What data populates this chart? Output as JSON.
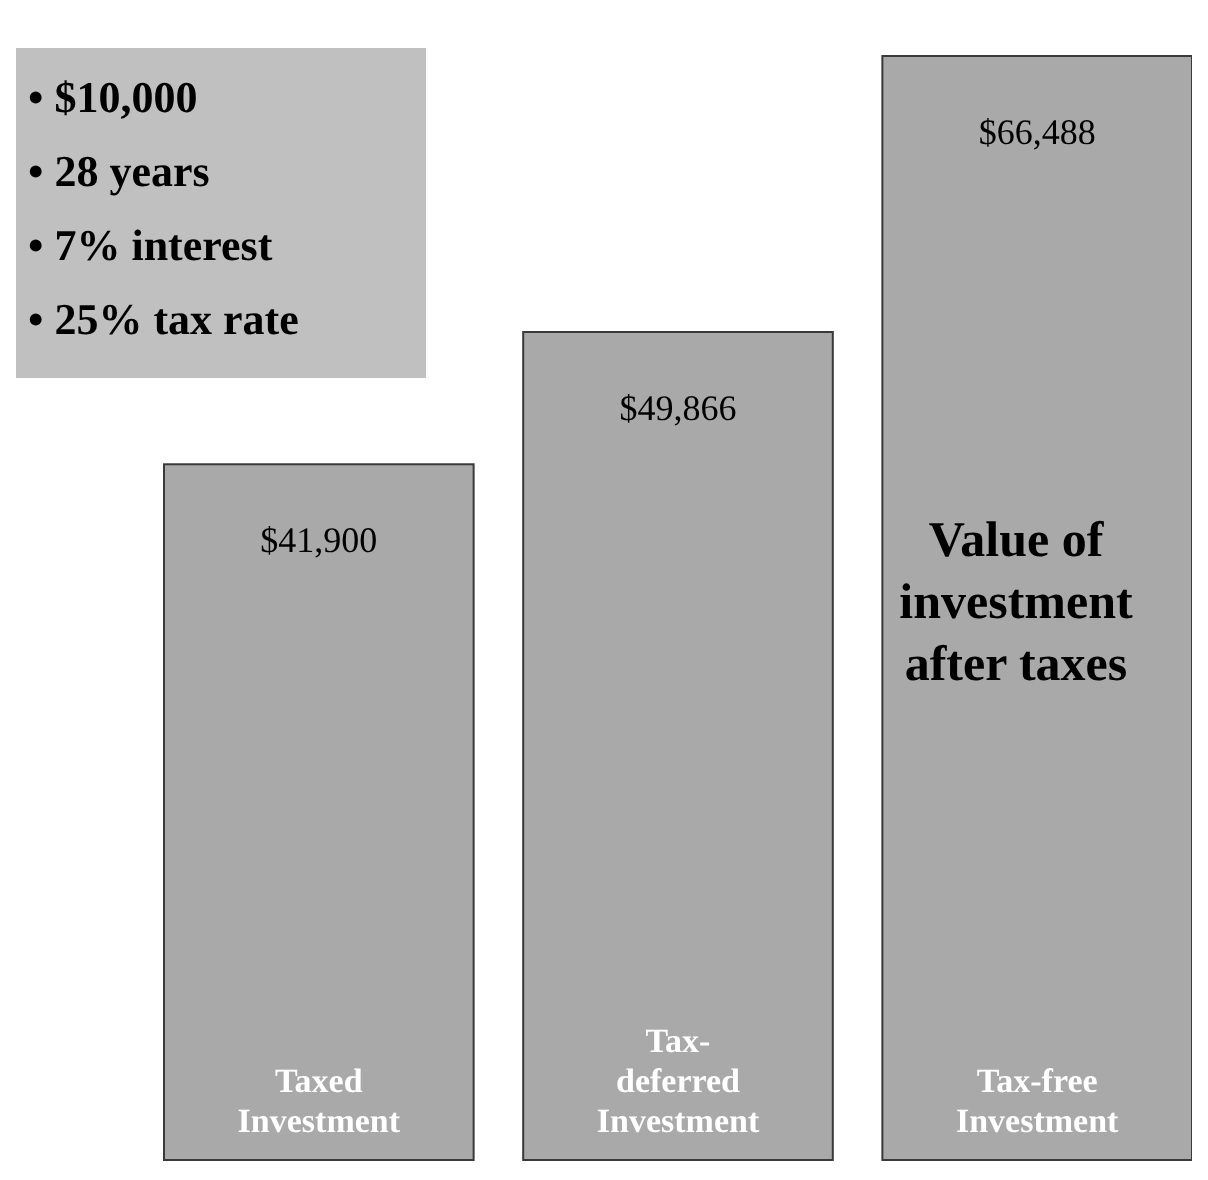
{
  "chart_data": {
    "type": "bar",
    "title": "Value of\ninvestment\nafter taxes",
    "categories": [
      "Taxed\nInvestment",
      "Tax-\ndeferred\nInvestment",
      "Tax-free\nInvestment"
    ],
    "values": [
      41900,
      49866,
      66488
    ],
    "value_labels": [
      "$41,900",
      "$49,866",
      "$66,488"
    ],
    "color": "#a9a9a9",
    "annotations": [
      "• $10,000",
      "• 28 years",
      "• 7% interest",
      "• 25% tax rate"
    ]
  }
}
